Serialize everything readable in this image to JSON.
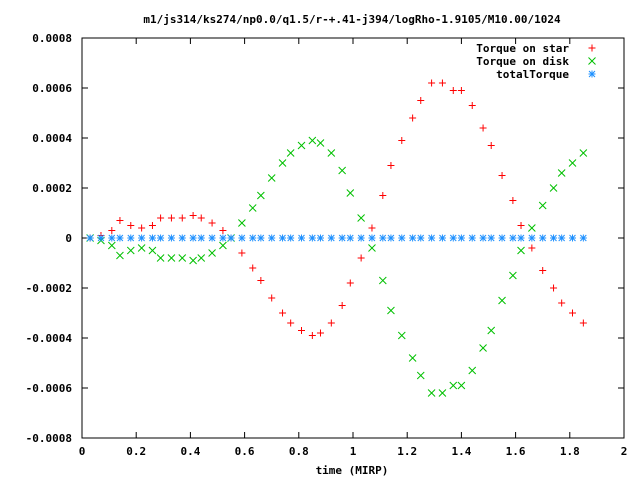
{
  "chart_data": {
    "type": "scatter",
    "title": "m1/js314/ks274/np0.0/q1.5/r-+.41-j394/logRho-1.9105/M10.00/1024",
    "xlabel": "time (MIRP)",
    "ylabel": "",
    "xlim": [
      0,
      2
    ],
    "ylim": [
      -0.0008,
      0.0008
    ],
    "grid": false,
    "legend_position": "top-right",
    "x_ticks": [
      "0",
      "0.2",
      "0.4",
      "0.6",
      "0.8",
      "1",
      "1.2",
      "1.4",
      "1.6",
      "1.8",
      "2"
    ],
    "y_ticks": [
      "-0.0008",
      "-0.0006",
      "-0.0004",
      "-0.0002",
      "0",
      "0.0002",
      "0.0004",
      "0.0006",
      "0.0008"
    ],
    "x": [
      0.03,
      0.07,
      0.11,
      0.14,
      0.18,
      0.22,
      0.26,
      0.29,
      0.33,
      0.37,
      0.41,
      0.44,
      0.48,
      0.52,
      0.55,
      0.59,
      0.63,
      0.66,
      0.7,
      0.74,
      0.77,
      0.81,
      0.85,
      0.88,
      0.92,
      0.96,
      0.99,
      1.03,
      1.07,
      1.11,
      1.14,
      1.18,
      1.22,
      1.25,
      1.29,
      1.33,
      1.37,
      1.4,
      1.44,
      1.48,
      1.51,
      1.55,
      1.59,
      1.62,
      1.66,
      1.7,
      1.74,
      1.77,
      1.81,
      1.85
    ],
    "series": [
      {
        "name": "Torque on star",
        "marker": "+",
        "color": "#ff0000",
        "values": [
          0.0,
          1e-05,
          3e-05,
          7e-05,
          5e-05,
          4e-05,
          5e-05,
          8e-05,
          8e-05,
          8e-05,
          9e-05,
          8e-05,
          6e-05,
          3e-05,
          0.0,
          -6e-05,
          -0.00012,
          -0.00017,
          -0.00024,
          -0.0003,
          -0.00034,
          -0.00037,
          -0.00039,
          -0.00038,
          -0.00034,
          -0.00027,
          -0.00018,
          -8e-05,
          4e-05,
          0.00017,
          0.00029,
          0.00039,
          0.00048,
          0.00055,
          0.00062,
          0.00062,
          0.00059,
          0.00059,
          0.00053,
          0.00044,
          0.00037,
          0.00025,
          0.00015,
          5e-05,
          -4e-05,
          -0.00013,
          -0.0002,
          -0.00026,
          -0.0003,
          -0.00034
        ]
      },
      {
        "name": "Torque on disk",
        "marker": "x",
        "color": "#00c000",
        "values": [
          0.0,
          -1e-05,
          -3e-05,
          -7e-05,
          -5e-05,
          -4e-05,
          -5e-05,
          -8e-05,
          -8e-05,
          -8e-05,
          -9e-05,
          -8e-05,
          -6e-05,
          -3e-05,
          0.0,
          6e-05,
          0.00012,
          0.00017,
          0.00024,
          0.0003,
          0.00034,
          0.00037,
          0.00039,
          0.00038,
          0.00034,
          0.00027,
          0.00018,
          8e-05,
          -4e-05,
          -0.00017,
          -0.00029,
          -0.00039,
          -0.00048,
          -0.00055,
          -0.00062,
          -0.00062,
          -0.00059,
          -0.00059,
          -0.00053,
          -0.00044,
          -0.00037,
          -0.00025,
          -0.00015,
          -5e-05,
          4e-05,
          0.00013,
          0.0002,
          0.00026,
          0.0003,
          0.00034
        ]
      },
      {
        "name": "totalTorque",
        "marker": "*",
        "color": "#1e90ff",
        "values": [
          0,
          0,
          0,
          0,
          0,
          0,
          0,
          0,
          0,
          0,
          0,
          0,
          0,
          0,
          0,
          0,
          0,
          0,
          0,
          0,
          0,
          0,
          0,
          0,
          0,
          0,
          0,
          0,
          0,
          0,
          0,
          0,
          0,
          0,
          0,
          0,
          0,
          0,
          0,
          0,
          0,
          0,
          0,
          0,
          0,
          0,
          0,
          0,
          0,
          0
        ]
      }
    ]
  }
}
